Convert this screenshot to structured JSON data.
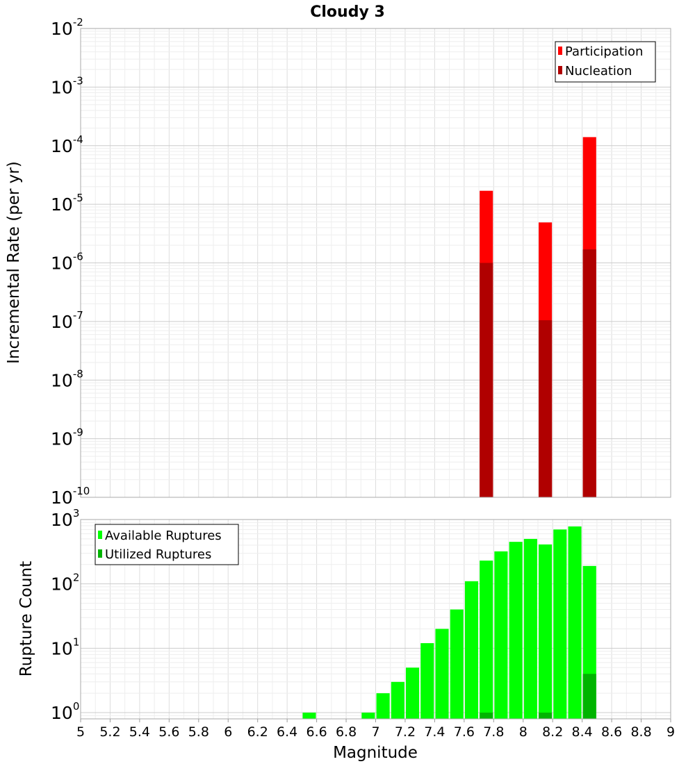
{
  "title": "Cloudy 3",
  "xlabel": "Magnitude",
  "chart_data": [
    {
      "type": "bar",
      "name": "top-panel",
      "ylabel": "Incremental Rate (per yr)",
      "yscale": "log",
      "ylim": [
        1e-10,
        0.01
      ],
      "xlim": [
        5,
        9
      ],
      "bar_width": 0.09,
      "grid": true,
      "legend_position": "top-right",
      "legend": [
        "Participation",
        "Nucleation"
      ],
      "y_tick_exponents": [
        "-2",
        "-3",
        "-4",
        "-5",
        "-6",
        "-7",
        "-8",
        "-9",
        "-10"
      ],
      "series": [
        {
          "name": "Participation",
          "color": "#ff0000",
          "x": [
            7.75,
            8.15,
            8.45
          ],
          "values": [
            1.7e-05,
            4.9e-06,
            0.00014
          ]
        },
        {
          "name": "Nucleation",
          "color": "#b00000",
          "x": [
            7.75,
            8.15,
            8.45
          ],
          "values": [
            1e-06,
            1.05e-07,
            1.7e-06
          ]
        }
      ]
    },
    {
      "type": "bar",
      "name": "bottom-panel",
      "ylabel": "Rupture Count",
      "yscale": "log",
      "ylim": [
        0.8,
        1000
      ],
      "xlim": [
        5,
        9
      ],
      "bar_width": 0.09,
      "grid": true,
      "legend_position": "top-left",
      "legend": [
        "Available Ruptures",
        "Utilized Ruptures"
      ],
      "y_tick_exponents": [
        "3",
        "2",
        "1",
        "0"
      ],
      "series": [
        {
          "name": "Available Ruptures",
          "color": "#00ff00",
          "x": [
            6.55,
            6.95,
            7.05,
            7.15,
            7.25,
            7.35,
            7.45,
            7.55,
            7.65,
            7.75,
            7.85,
            7.95,
            8.05,
            8.15,
            8.25,
            8.35,
            8.45
          ],
          "values": [
            1,
            1,
            2,
            3,
            5,
            12,
            20,
            40,
            110,
            230,
            320,
            450,
            500,
            410,
            700,
            780,
            190
          ]
        },
        {
          "name": "Utilized Ruptures",
          "color": "#00b400",
          "x": [
            7.75,
            8.15,
            8.45
          ],
          "values": [
            1,
            1,
            4
          ]
        }
      ]
    }
  ],
  "x_ticks": [
    "5",
    "5.2",
    "5.4",
    "5.6",
    "5.8",
    "6",
    "6.2",
    "6.4",
    "6.6",
    "6.8",
    "7",
    "7.2",
    "7.4",
    "7.6",
    "7.8",
    "8",
    "8.2",
    "8.4",
    "8.6",
    "8.8",
    "9"
  ]
}
